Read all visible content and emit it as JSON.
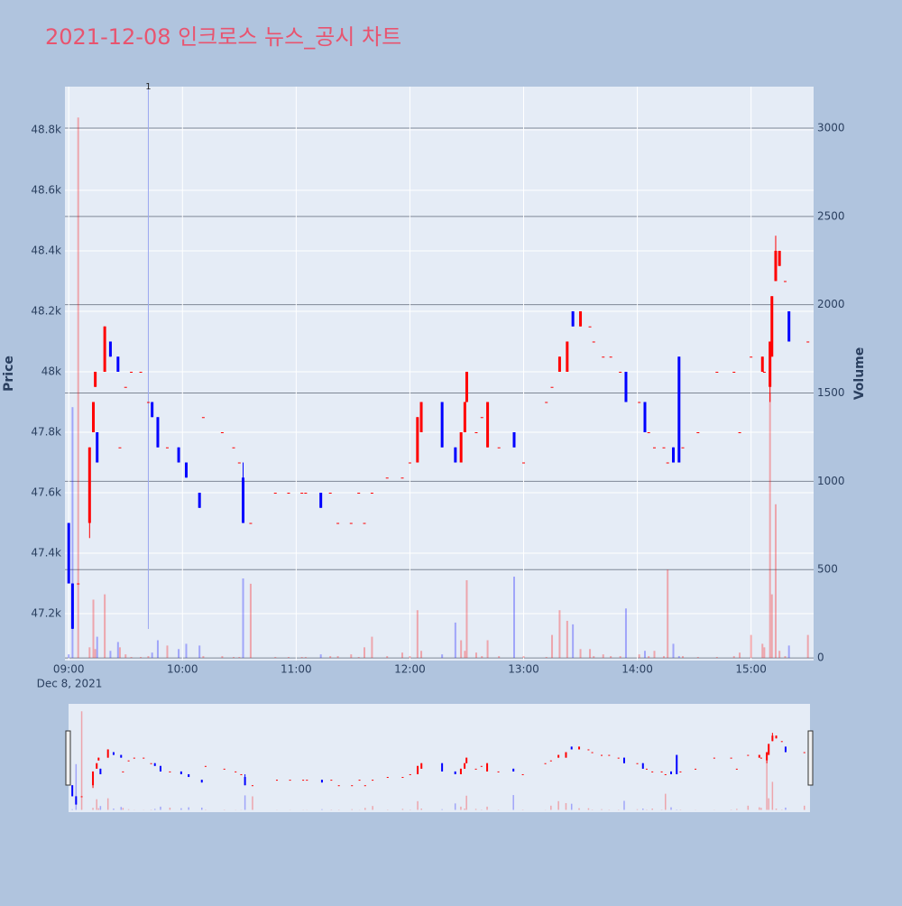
{
  "chart_data": {
    "type": "candlestick",
    "title": "2021-12-08 인크로스 뉴스_공시 차트",
    "y_label": "Price",
    "y2_label": "Volume",
    "x_date_label": "Dec 8, 2021",
    "increasing_color": "#ff0000",
    "decreasing_color": "#0000ff",
    "xlim": [
      "08:58",
      "15:33"
    ],
    "xticks": [
      "09:00",
      "10:00",
      "11:00",
      "12:00",
      "13:00",
      "14:00",
      "15:00"
    ],
    "ylim": [
      47045,
      48943
    ],
    "yticks": [
      {
        "value": 47200,
        "label": "47.2k"
      },
      {
        "value": 47400,
        "label": "47.4k"
      },
      {
        "value": 47600,
        "label": "47.6k"
      },
      {
        "value": 47800,
        "label": "47.8k"
      },
      {
        "value": 48000,
        "label": "48k"
      },
      {
        "value": 48200,
        "label": "48.2k"
      },
      {
        "value": 48400,
        "label": "48.4k"
      },
      {
        "value": 48600,
        "label": "48.6k"
      },
      {
        "value": 48800,
        "label": "48.8k"
      }
    ],
    "y2lim": [
      -15,
      3235
    ],
    "y2ticks": [
      0,
      500,
      1000,
      1500,
      2000,
      2500,
      3000
    ],
    "annotations": [
      {
        "x": "09:42",
        "text": "1"
      }
    ],
    "x": [
      "09:00",
      "09:02",
      "09:05",
      "09:11",
      "09:13",
      "09:14",
      "09:15",
      "09:19",
      "09:22",
      "09:26",
      "09:27",
      "09:30",
      "09:33",
      "09:38",
      "09:42",
      "09:44",
      "09:47",
      "09:52",
      "09:58",
      "10:02",
      "10:09",
      "10:11",
      "10:21",
      "10:27",
      "10:30",
      "10:32",
      "10:36",
      "10:49",
      "10:56",
      "11:03",
      "11:05",
      "11:13",
      "11:18",
      "11:22",
      "11:29",
      "11:33",
      "11:36",
      "11:40",
      "11:48",
      "11:56",
      "12:00",
      "12:04",
      "12:06",
      "12:17",
      "12:24",
      "12:27",
      "12:29",
      "12:30",
      "12:35",
      "12:38",
      "12:41",
      "12:47",
      "12:55",
      "13:00",
      "13:12",
      "13:15",
      "13:19",
      "13:23",
      "13:26",
      "13:30",
      "13:35",
      "13:37",
      "13:42",
      "13:46",
      "13:51",
      "13:54",
      "14:01",
      "14:04",
      "14:06",
      "14:09",
      "14:14",
      "14:16",
      "14:19",
      "14:22",
      "14:24",
      "14:32",
      "14:42",
      "14:51",
      "14:54",
      "15:00",
      "15:06",
      "15:07",
      "15:10",
      "15:11",
      "15:13",
      "15:15",
      "15:18",
      "15:20",
      "15:30"
    ],
    "open": [
      47500,
      47300,
      47300,
      47500,
      47800,
      47950,
      47800,
      48000,
      48100,
      48050,
      47750,
      47950,
      48000,
      48000,
      47900,
      47900,
      47850,
      47750,
      47750,
      47700,
      47600,
      47850,
      47800,
      47750,
      47700,
      47650,
      47500,
      47600,
      47600,
      47600,
      47600,
      47600,
      47600,
      47500,
      47500,
      47600,
      47500,
      47600,
      47650,
      47650,
      47700,
      47700,
      47800,
      47900,
      47750,
      47700,
      47800,
      47900,
      47800,
      47850,
      47750,
      47750,
      47800,
      47700,
      47900,
      47950,
      48000,
      48000,
      48200,
      48150,
      48150,
      48100,
      48050,
      48050,
      48000,
      48000,
      47900,
      47900,
      47800,
      47750,
      47750,
      47700,
      47750,
      48050,
      47750,
      47800,
      48000,
      48000,
      47800,
      48050,
      48000,
      48000,
      47950,
      48050,
      48300,
      48350,
      48300,
      48200,
      48100
    ],
    "high": [
      47500,
      47300,
      47300,
      47750,
      47900,
      48000,
      47800,
      48150,
      48100,
      48050,
      47750,
      47950,
      48000,
      48000,
      47900,
      47900,
      47850,
      47750,
      47750,
      47700,
      47600,
      47850,
      47800,
      47750,
      47700,
      47700,
      47500,
      47600,
      47600,
      47600,
      47600,
      47600,
      47600,
      47500,
      47500,
      47600,
      47500,
      47600,
      47650,
      47650,
      47700,
      47850,
      47900,
      47900,
      47750,
      47800,
      47900,
      48000,
      47800,
      47850,
      47900,
      47750,
      47800,
      47700,
      47900,
      47950,
      48050,
      48100,
      48200,
      48200,
      48150,
      48100,
      48050,
      48050,
      48000,
      48000,
      47900,
      47900,
      47800,
      47750,
      47750,
      47700,
      47750,
      48050,
      47750,
      47800,
      48000,
      48000,
      47800,
      48050,
      48050,
      48000,
      48100,
      48250,
      48450,
      48400,
      48300,
      48200,
      48100
    ],
    "low": [
      47300,
      47150,
      47300,
      47450,
      47800,
      47950,
      47700,
      48000,
      48050,
      48000,
      47750,
      47950,
      48000,
      48000,
      47900,
      47850,
      47750,
      47750,
      47700,
      47650,
      47550,
      47850,
      47800,
      47750,
      47700,
      47500,
      47500,
      47600,
      47600,
      47600,
      47600,
      47550,
      47600,
      47500,
      47500,
      47600,
      47500,
      47600,
      47650,
      47650,
      47700,
      47700,
      47800,
      47750,
      47700,
      47700,
      47800,
      47900,
      47800,
      47850,
      47750,
      47750,
      47750,
      47700,
      47900,
      47950,
      48000,
      48000,
      48150,
      48150,
      48150,
      48100,
      48050,
      48050,
      48000,
      47900,
      47900,
      47800,
      47800,
      47750,
      47750,
      47700,
      47700,
      47700,
      47750,
      47800,
      48000,
      48000,
      47800,
      48050,
      48000,
      48000,
      47900,
      48050,
      48300,
      48350,
      48300,
      48100,
      48100
    ],
    "close": [
      47300,
      47150,
      47300,
      47750,
      47900,
      48000,
      47700,
      48150,
      48050,
      48000,
      47750,
      47950,
      48000,
      48000,
      47900,
      47850,
      47750,
      47750,
      47700,
      47650,
      47550,
      47850,
      47800,
      47750,
      47700,
      47500,
      47500,
      47600,
      47600,
      47600,
      47600,
      47550,
      47600,
      47500,
      47500,
      47600,
      47500,
      47600,
      47650,
      47650,
      47700,
      47850,
      47900,
      47750,
      47700,
      47800,
      47900,
      48000,
      47800,
      47850,
      47900,
      47750,
      47750,
      47700,
      47900,
      47950,
      48050,
      48100,
      48150,
      48200,
      48150,
      48100,
      48050,
      48050,
      48000,
      47900,
      47900,
      47800,
      47800,
      47750,
      47750,
      47700,
      47700,
      47700,
      47750,
      47800,
      48000,
      48000,
      47800,
      48050,
      48050,
      48000,
      48100,
      48250,
      48400,
      48400,
      48300,
      48100,
      48100
    ],
    "volume": [
      20,
      1420,
      3060,
      60,
      330,
      50,
      120,
      360,
      40,
      90,
      60,
      20,
      5,
      5,
      10,
      30,
      100,
      70,
      50,
      80,
      70,
      10,
      10,
      5,
      5,
      450,
      420,
      5,
      5,
      5,
      5,
      20,
      10,
      10,
      20,
      5,
      60,
      120,
      10,
      30,
      10,
      270,
      40,
      20,
      200,
      100,
      40,
      440,
      30,
      10,
      100,
      10,
      460,
      10,
      5,
      130,
      270,
      210,
      190,
      50,
      50,
      10,
      20,
      10,
      10,
      280,
      20,
      40,
      10,
      40,
      10,
      500,
      80,
      10,
      10,
      5,
      5,
      10,
      30,
      130,
      80,
      60,
      1500,
      360,
      870,
      40,
      10,
      70,
      130
    ]
  }
}
